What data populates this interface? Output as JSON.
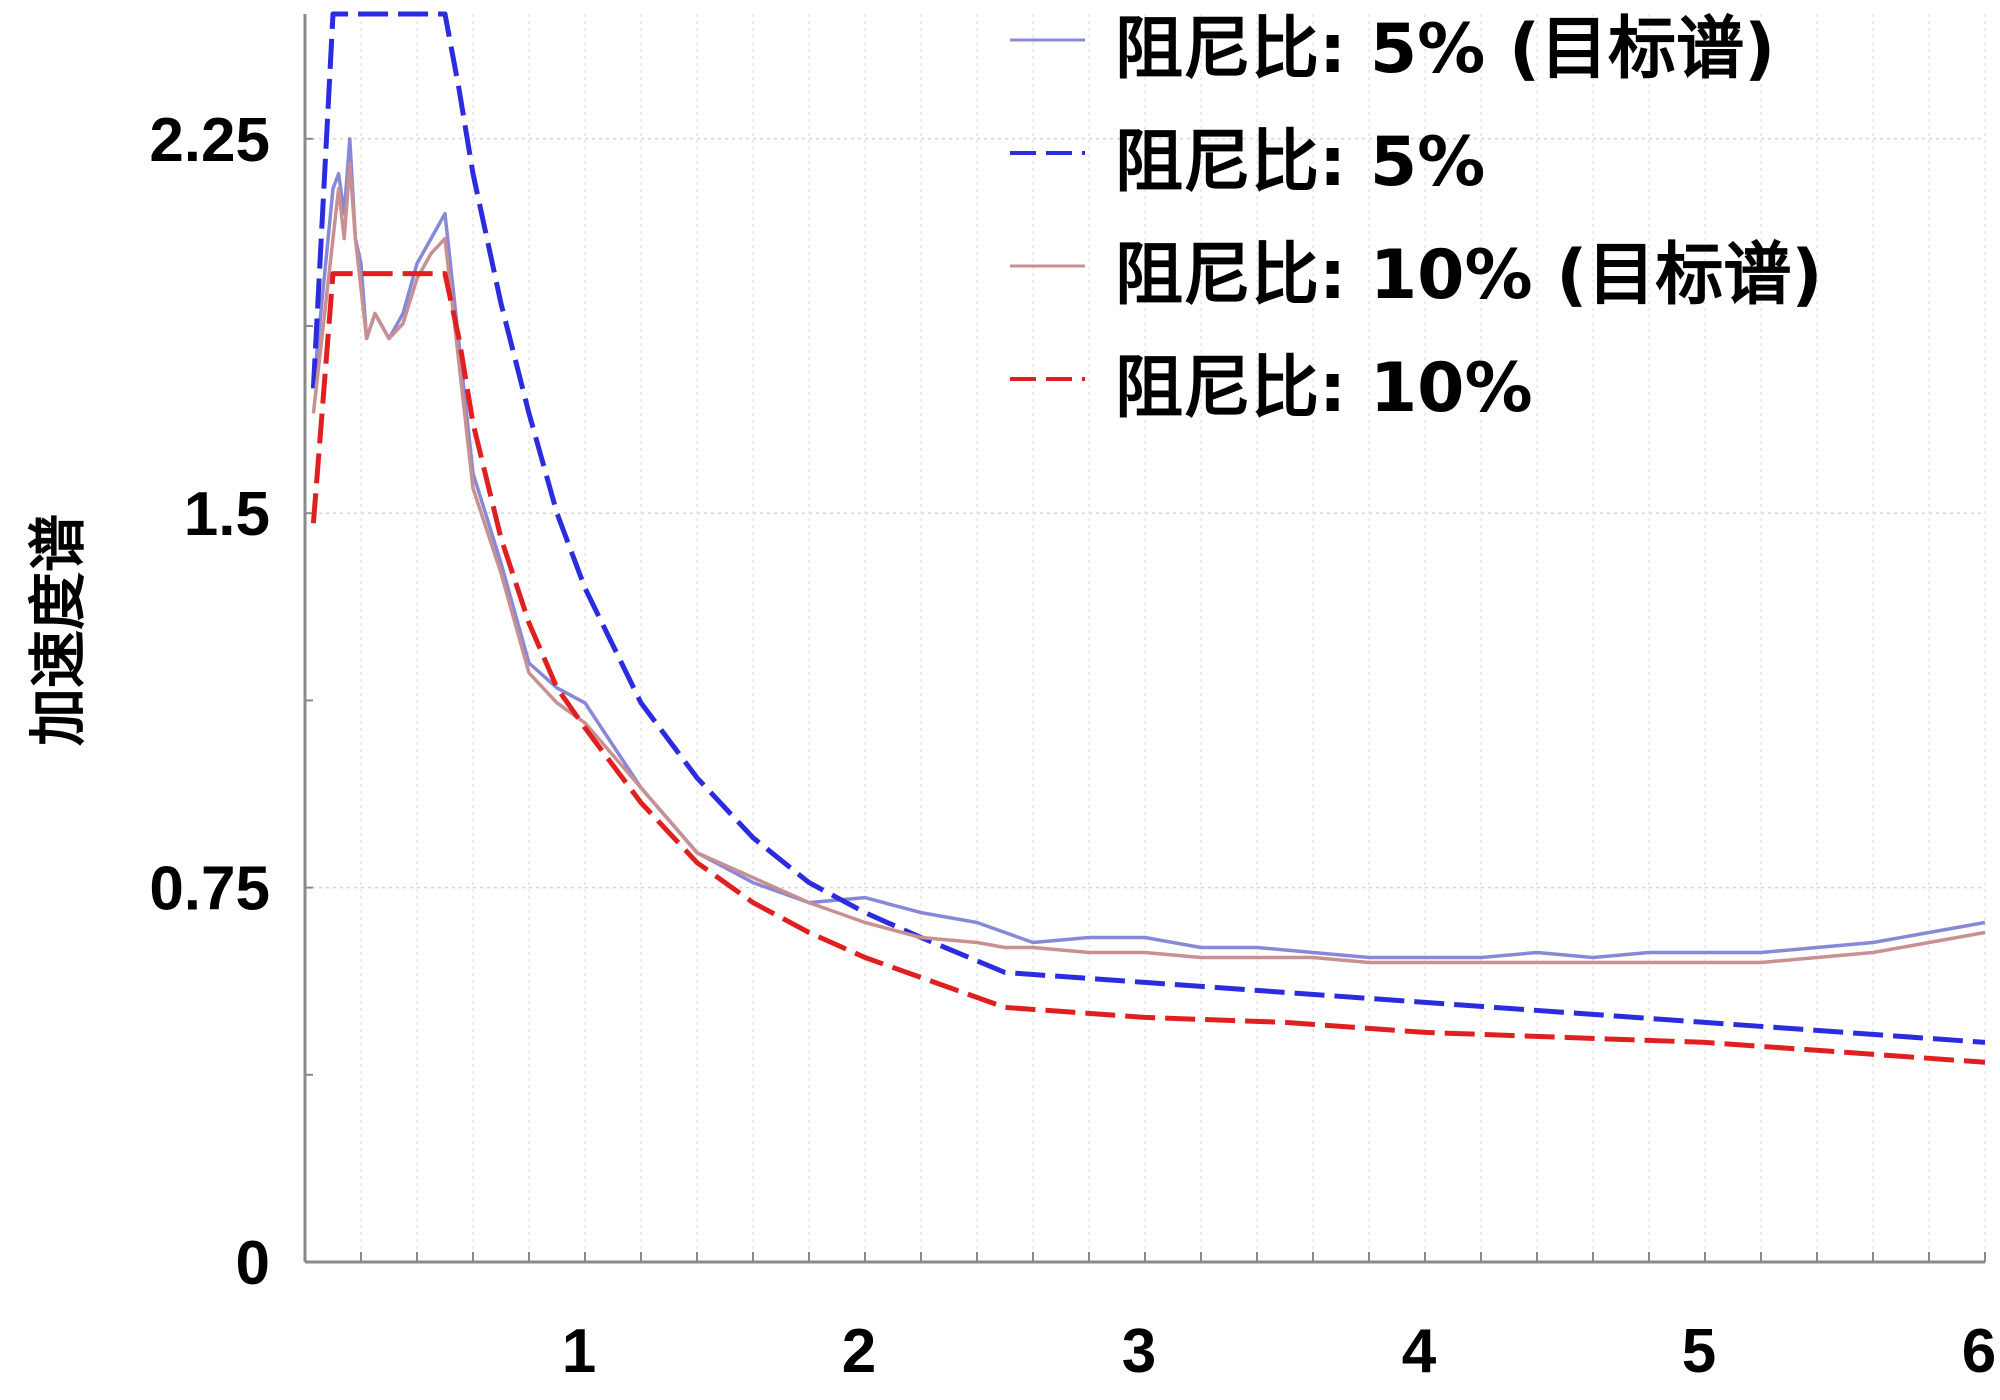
{
  "chart_data": {
    "type": "line",
    "title": "",
    "xlabel": "",
    "ylabel": "加速度谱",
    "xlim": [
      0,
      6
    ],
    "ylim": [
      0,
      2.5
    ],
    "grid": true,
    "legend_position": "top-right",
    "x_ticks": [
      1,
      2,
      3,
      4,
      5,
      6
    ],
    "y_ticks": [
      0,
      0.75,
      1.5,
      2.25
    ],
    "y_tick_labels": [
      "0",
      "0.75",
      "1.5",
      "2.25"
    ],
    "series": [
      {
        "name": "阻尼比: 5% (目标谱)",
        "color": "#8888d8",
        "dash": false,
        "x": [
          0.03,
          0.1,
          0.12,
          0.14,
          0.16,
          0.18,
          0.2,
          0.22,
          0.25,
          0.3,
          0.35,
          0.4,
          0.45,
          0.5,
          0.6,
          0.7,
          0.8,
          0.9,
          1.0,
          1.2,
          1.4,
          1.6,
          1.8,
          2.0,
          2.2,
          2.4,
          2.5,
          2.6,
          2.8,
          3.0,
          3.2,
          3.4,
          3.6,
          3.8,
          4.0,
          4.2,
          4.4,
          4.6,
          4.8,
          5.0,
          5.2,
          5.4,
          5.6,
          5.8,
          6.0
        ],
        "y": [
          1.75,
          2.15,
          2.18,
          2.1,
          2.25,
          2.05,
          2.0,
          1.85,
          1.9,
          1.85,
          1.9,
          2.0,
          2.05,
          2.1,
          1.58,
          1.4,
          1.2,
          1.15,
          1.12,
          0.95,
          0.82,
          0.76,
          0.72,
          0.73,
          0.7,
          0.68,
          0.66,
          0.64,
          0.65,
          0.65,
          0.63,
          0.63,
          0.62,
          0.61,
          0.61,
          0.61,
          0.62,
          0.61,
          0.62,
          0.62,
          0.62,
          0.63,
          0.64,
          0.66,
          0.68
        ]
      },
      {
        "name": "阻尼比: 5%",
        "color": "#2b2be0",
        "dash": true,
        "x": [
          0.03,
          0.1,
          0.5,
          0.55,
          0.6,
          0.7,
          0.8,
          0.9,
          1.0,
          1.2,
          1.4,
          1.6,
          1.8,
          2.0,
          2.2,
          2.5,
          3.0,
          3.5,
          4.0,
          4.5,
          5.0,
          5.5,
          6.0
        ],
        "y": [
          1.75,
          2.5,
          2.5,
          2.35,
          2.18,
          1.92,
          1.7,
          1.5,
          1.35,
          1.12,
          0.97,
          0.85,
          0.76,
          0.7,
          0.65,
          0.58,
          0.56,
          0.54,
          0.52,
          0.5,
          0.48,
          0.46,
          0.44
        ]
      },
      {
        "name": "阻尼比: 10% (目标谱)",
        "color": "#c89090",
        "dash": false,
        "x": [
          0.03,
          0.1,
          0.12,
          0.14,
          0.16,
          0.18,
          0.2,
          0.22,
          0.25,
          0.3,
          0.35,
          0.4,
          0.45,
          0.5,
          0.6,
          0.7,
          0.8,
          0.9,
          1.0,
          1.2,
          1.4,
          1.6,
          1.8,
          2.0,
          2.2,
          2.4,
          2.5,
          2.6,
          2.8,
          3.0,
          3.2,
          3.4,
          3.6,
          3.8,
          4.0,
          4.2,
          4.4,
          4.6,
          4.8,
          5.0,
          5.2,
          5.4,
          5.6,
          5.8,
          6.0
        ],
        "y": [
          1.7,
          2.05,
          2.15,
          2.05,
          2.2,
          2.05,
          1.95,
          1.85,
          1.9,
          1.85,
          1.88,
          1.97,
          2.02,
          2.05,
          1.55,
          1.38,
          1.18,
          1.12,
          1.08,
          0.95,
          0.82,
          0.77,
          0.72,
          0.68,
          0.65,
          0.64,
          0.63,
          0.63,
          0.62,
          0.62,
          0.61,
          0.61,
          0.61,
          0.6,
          0.6,
          0.6,
          0.6,
          0.6,
          0.6,
          0.6,
          0.6,
          0.61,
          0.62,
          0.64,
          0.66
        ]
      },
      {
        "name": "阻尼比: 10%",
        "color": "#e02020",
        "dash": true,
        "x": [
          0.03,
          0.1,
          0.5,
          0.55,
          0.6,
          0.7,
          0.8,
          0.9,
          1.0,
          1.2,
          1.4,
          1.6,
          1.8,
          2.0,
          2.2,
          2.5,
          3.0,
          3.5,
          4.0,
          4.5,
          5.0,
          5.5,
          6.0
        ],
        "y": [
          1.48,
          1.98,
          1.98,
          1.85,
          1.68,
          1.45,
          1.28,
          1.15,
          1.07,
          0.92,
          0.8,
          0.72,
          0.66,
          0.61,
          0.57,
          0.51,
          0.49,
          0.48,
          0.46,
          0.45,
          0.44,
          0.42,
          0.4
        ]
      }
    ]
  }
}
